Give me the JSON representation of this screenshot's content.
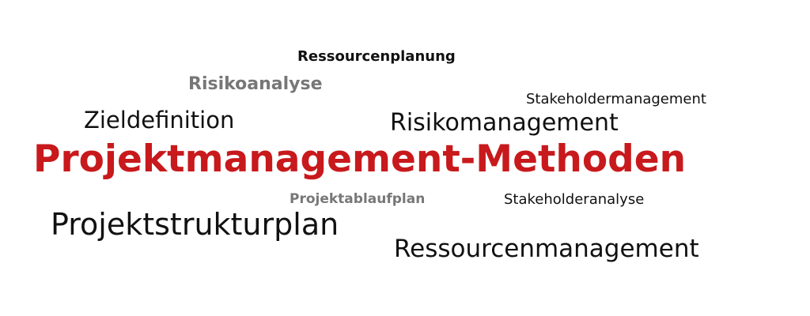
{
  "words": {
    "ressourcenplanung": "Ressourcenplanung",
    "risikoanalyse": "Risikoanalyse",
    "stakeholdermanagement": "Stakeholdermanagement",
    "zieldefinition": "Zieldefinition",
    "risikomanagement": "Risikomanagement",
    "main_title": "Projektmanagement-Methoden",
    "projektablaufplan": "Projektablaufplan",
    "stakeholderanalyse": "Stakeholderanalyse",
    "projektstrukturplan": "Projektstrukturplan",
    "ressourcenmanagement": "Ressourcenmanagement"
  },
  "colors": {
    "accent_red": "#c8191c",
    "grey": "#777777",
    "text": "#111111",
    "background": "#ffffff"
  }
}
